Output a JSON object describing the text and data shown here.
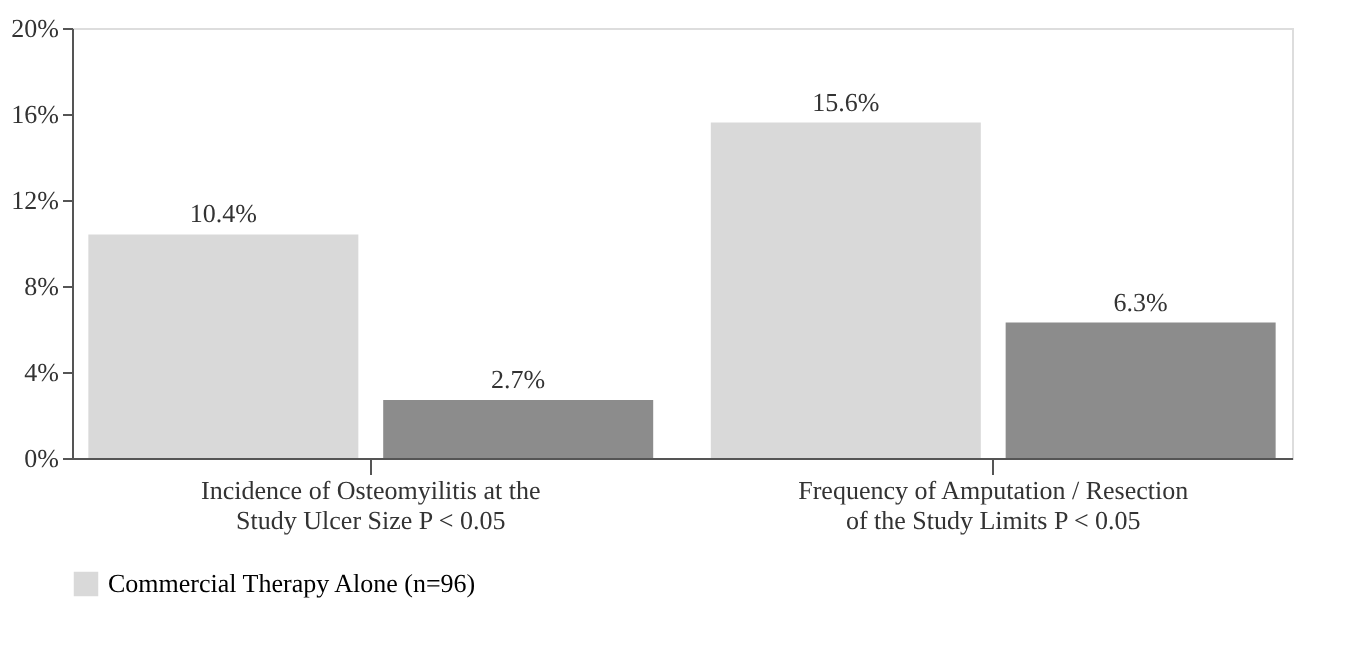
{
  "chart_data": {
    "type": "bar",
    "categories": [
      "Incidence of Osteomyilitis at the\nStudy Ulcer Size P < 0.05",
      "Frequency of Amputation / Resection\nof the Study Limits P < 0.05"
    ],
    "series": [
      {
        "name": "Commercial Therapy Alone (n=96)",
        "color": "#d9d9d9",
        "values": [
          10.4,
          15.6
        ],
        "value_labels": [
          "10.4%",
          "15.6%"
        ]
      },
      {
        "color": "#8c8c8c",
        "values": [
          2.7,
          6.3
        ],
        "value_labels": [
          "2.7%",
          "6.3%"
        ]
      }
    ],
    "ylim": [
      0,
      20
    ],
    "yticks": [
      {
        "value": 0,
        "label": "0%"
      },
      {
        "value": 4,
        "label": "4%"
      },
      {
        "value": 8,
        "label": "8%"
      },
      {
        "value": 12,
        "label": "12%"
      },
      {
        "value": 16,
        "label": "16%"
      },
      {
        "value": 20,
        "label": "20%"
      }
    ],
    "grid": false,
    "legend": "bottom"
  }
}
